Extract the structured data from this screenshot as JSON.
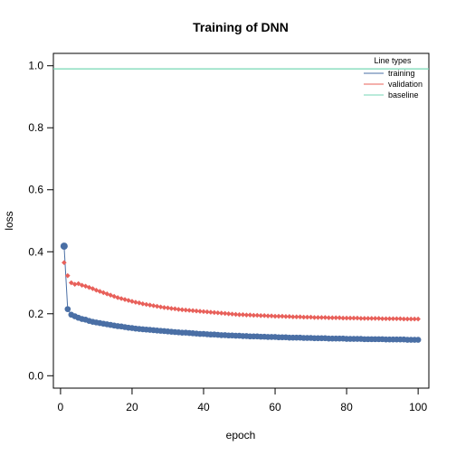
{
  "chart_data": {
    "type": "line",
    "title": "Training of DNN",
    "xlabel": "epoch",
    "ylabel": "loss",
    "xlim": [
      -2,
      103
    ],
    "ylim": [
      -0.04,
      1.04
    ],
    "xticks": [
      0,
      20,
      40,
      60,
      80,
      100
    ],
    "yticks": [
      0.0,
      0.2,
      0.4,
      0.6,
      0.8,
      1.0
    ],
    "xtick_labels": [
      "0",
      "20",
      "40",
      "60",
      "80",
      "100"
    ],
    "ytick_labels": [
      "0.0",
      "0.2",
      "0.4",
      "0.6",
      "0.8",
      "1.0"
    ],
    "grid": false,
    "legend": {
      "title": "Line types",
      "position": "top-right",
      "entries": [
        "training",
        "validation",
        "baseline"
      ]
    },
    "colors": {
      "training": "#4a6fa5",
      "validation": "#e8605a",
      "baseline": "#76d7b4"
    },
    "baseline": 0.99,
    "x": [
      1,
      2,
      3,
      4,
      5,
      6,
      7,
      8,
      9,
      10,
      11,
      12,
      13,
      14,
      15,
      16,
      17,
      18,
      19,
      20,
      21,
      22,
      23,
      24,
      25,
      26,
      27,
      28,
      29,
      30,
      31,
      32,
      33,
      34,
      35,
      36,
      37,
      38,
      39,
      40,
      41,
      42,
      43,
      44,
      45,
      46,
      47,
      48,
      49,
      50,
      51,
      52,
      53,
      54,
      55,
      56,
      57,
      58,
      59,
      60,
      61,
      62,
      63,
      64,
      65,
      66,
      67,
      68,
      69,
      70,
      71,
      72,
      73,
      74,
      75,
      76,
      77,
      78,
      79,
      80,
      81,
      82,
      83,
      84,
      85,
      86,
      87,
      88,
      89,
      90,
      91,
      92,
      93,
      94,
      95,
      96,
      97,
      98,
      99,
      100
    ],
    "series": [
      {
        "name": "training",
        "values": [
          0.418,
          0.215,
          0.197,
          0.192,
          0.187,
          0.183,
          0.181,
          0.177,
          0.174,
          0.172,
          0.17,
          0.168,
          0.166,
          0.164,
          0.162,
          0.16,
          0.159,
          0.157,
          0.155,
          0.154,
          0.152,
          0.151,
          0.15,
          0.149,
          0.148,
          0.147,
          0.146,
          0.145,
          0.144,
          0.143,
          0.142,
          0.141,
          0.14,
          0.139,
          0.139,
          0.138,
          0.137,
          0.136,
          0.135,
          0.135,
          0.134,
          0.133,
          0.133,
          0.132,
          0.131,
          0.131,
          0.13,
          0.13,
          0.129,
          0.129,
          0.128,
          0.128,
          0.127,
          0.127,
          0.127,
          0.126,
          0.126,
          0.125,
          0.125,
          0.125,
          0.124,
          0.124,
          0.124,
          0.123,
          0.123,
          0.123,
          0.123,
          0.122,
          0.122,
          0.122,
          0.121,
          0.121,
          0.121,
          0.121,
          0.12,
          0.12,
          0.12,
          0.12,
          0.12,
          0.119,
          0.119,
          0.119,
          0.119,
          0.119,
          0.118,
          0.118,
          0.118,
          0.118,
          0.118,
          0.118,
          0.117,
          0.117,
          0.117,
          0.117,
          0.117,
          0.117,
          0.116,
          0.116,
          0.116,
          0.116
        ]
      },
      {
        "name": "validation",
        "values": [
          0.365,
          0.323,
          0.3,
          0.295,
          0.297,
          0.292,
          0.289,
          0.285,
          0.281,
          0.276,
          0.272,
          0.268,
          0.264,
          0.26,
          0.256,
          0.252,
          0.249,
          0.246,
          0.243,
          0.24,
          0.237,
          0.235,
          0.232,
          0.23,
          0.228,
          0.226,
          0.224,
          0.222,
          0.22,
          0.219,
          0.217,
          0.216,
          0.214,
          0.213,
          0.212,
          0.211,
          0.21,
          0.209,
          0.208,
          0.207,
          0.206,
          0.205,
          0.204,
          0.203,
          0.202,
          0.201,
          0.2,
          0.199,
          0.198,
          0.197,
          0.197,
          0.196,
          0.196,
          0.195,
          0.195,
          0.194,
          0.194,
          0.193,
          0.193,
          0.192,
          0.192,
          0.192,
          0.191,
          0.191,
          0.19,
          0.19,
          0.19,
          0.189,
          0.189,
          0.189,
          0.188,
          0.188,
          0.188,
          0.188,
          0.187,
          0.187,
          0.187,
          0.187,
          0.186,
          0.186,
          0.186,
          0.186,
          0.186,
          0.185,
          0.185,
          0.185,
          0.185,
          0.185,
          0.185,
          0.184,
          0.184,
          0.184,
          0.184,
          0.184,
          0.184,
          0.183,
          0.183,
          0.183,
          0.183,
          0.183
        ]
      }
    ]
  }
}
